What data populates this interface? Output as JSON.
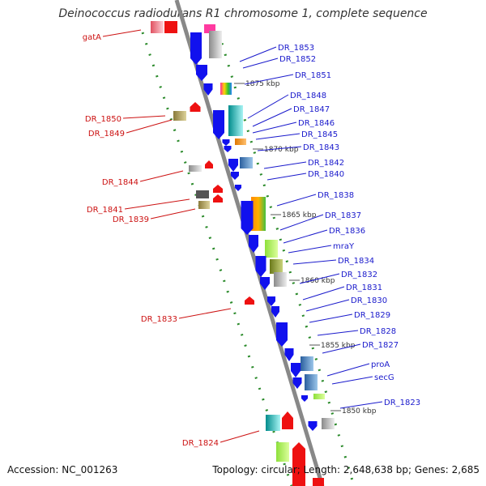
{
  "title": "Deinococcus radiodurans R1 chromosome 1, complete sequence",
  "footer": {
    "accession": "Accession: NC_001263",
    "topology": "Topology: circular; Length: 2,648,638 bp; Genes: 2,685"
  },
  "colors": {
    "backbone": "#888888",
    "forward_strand": "#1111ee",
    "reverse_strand": "#ee1111",
    "forward_label": "#1a1acc",
    "reverse_label": "#cc1111",
    "tick": "#2a8a2a"
  },
  "tick_labels": [
    "1875 kbp",
    "1870 kbp",
    "1865 kbp",
    "1860 kbp",
    "1855 kbp",
    "1850 kbp"
  ],
  "forward_genes": [
    "DR_1853",
    "DR_1852",
    "DR_1851",
    "DR_1848",
    "DR_1847",
    "DR_1846",
    "DR_1845",
    "DR_1843",
    "DR_1842",
    "DR_1840",
    "DR_1838",
    "DR_1837",
    "DR_1836",
    "mraY",
    "DR_1834",
    "DR_1832",
    "DR_1831",
    "DR_1830",
    "DR_1829",
    "DR_1828",
    "DR_1827",
    "proA",
    "secG",
    "DR_1823"
  ],
  "reverse_genes": [
    "gatA",
    "DR_1850",
    "DR_1849",
    "DR_1844",
    "DR_1841",
    "DR_1839",
    "DR_1833",
    "DR_1824"
  ]
}
